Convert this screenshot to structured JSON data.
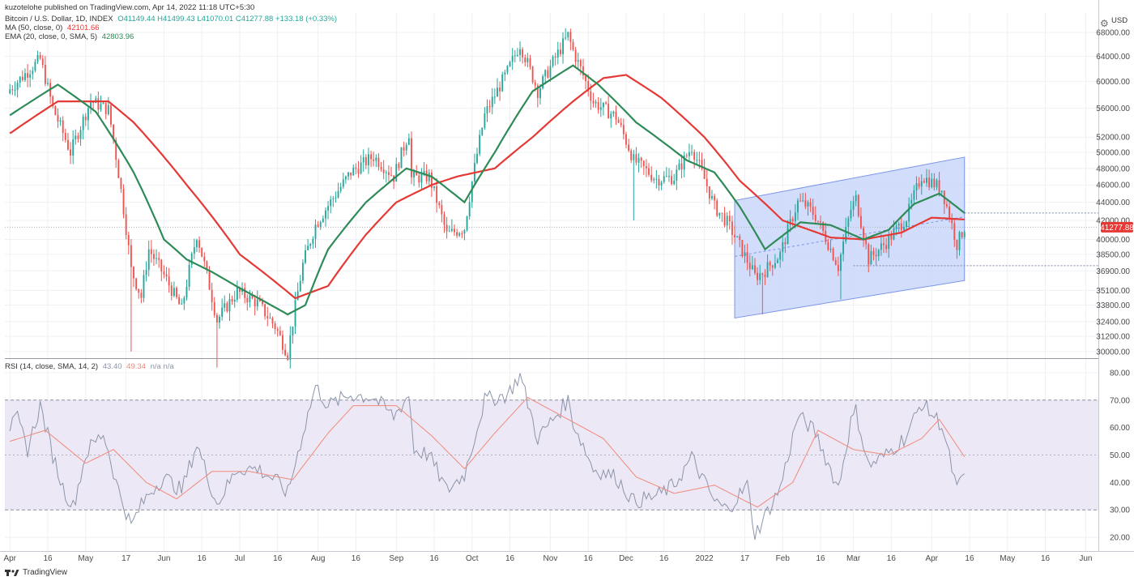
{
  "header": {
    "published": "kuzotelohe published on TradingView.com, Apr 14, 2022 11:18 UTC+5:30"
  },
  "legend": {
    "main": {
      "name": "Bitcoin / U.S. Dollar, 1D, INDEX",
      "ohlc": "O41149.44 H41499.43 L41070.01 C41277.88 +133.18 (+0.33%)"
    },
    "ma": {
      "name": "MA (50, close, 0)",
      "value": "42101.66"
    },
    "ema": {
      "name": "EMA (20, close, 0, SMA, 5)",
      "value": "42803.96"
    },
    "rsi": {
      "name": "RSI (14, close, SMA, 14, 2)",
      "value1": "43.40",
      "value2": "49.34",
      "extra": "n/a n/a"
    }
  },
  "unit": "USD",
  "last_price_label": "41277.88",
  "footer": {
    "brand": "TradingView"
  },
  "colors": {
    "up": "#26a69a",
    "down": "#ef5350",
    "ma": "#e53935",
    "ema": "#2e8b57",
    "channel_fill": "#c9d7fa",
    "channel_stroke": "#7a95e8",
    "rsi_line": "#8c95aa",
    "rsi_ma": "#f08a7a",
    "rsi_band": "#ede8f6",
    "price_tag": "#e53935"
  },
  "chart_data": {
    "type": "candlestick",
    "title": "Bitcoin / U.S. Dollar, 1D, INDEX",
    "price_axis": {
      "scale": "log",
      "ticks": [
        "68000.00",
        "64000.00",
        "60000.00",
        "56000.00",
        "52000.00",
        "50000.00",
        "48000.00",
        "46000.00",
        "44000.00",
        "42000.00",
        "40000.00",
        "38500.00",
        "36900.00",
        "35100.00",
        "33800.00",
        "32400.00",
        "31200.00",
        "30000.00"
      ],
      "range": [
        29500,
        71500
      ]
    },
    "rsi_axis": {
      "ticks": [
        "80.00",
        "70.00",
        "60.00",
        "50.00",
        "40.00",
        "30.00",
        "20.00"
      ],
      "range": [
        15,
        85
      ],
      "band": [
        30,
        70
      ]
    },
    "x_ticks": [
      "Apr",
      "16",
      "May",
      "17",
      "Jun",
      "16",
      "Jul",
      "16",
      "Aug",
      "16",
      "Sep",
      "16",
      "Oct",
      "16",
      "Nov",
      "16",
      "Dec",
      "16",
      "2022",
      "17",
      "Feb",
      "16",
      "Mar",
      "16",
      "Apr",
      "16",
      "May",
      "16",
      "Jun"
    ],
    "x_ticks_date": [
      "2021-04-01",
      "2021-04-16",
      "2021-05-01",
      "2021-05-17",
      "2021-06-01",
      "2021-06-16",
      "2021-07-01",
      "2021-07-16",
      "2021-08-01",
      "2021-08-16",
      "2021-09-01",
      "2021-09-16",
      "2021-10-01",
      "2021-10-16",
      "2021-11-01",
      "2021-11-16",
      "2021-12-01",
      "2021-12-16",
      "2022-01-01",
      "2022-01-17",
      "2022-02-01",
      "2022-02-16",
      "2022-03-01",
      "2022-03-16",
      "2022-04-01",
      "2022-04-16",
      "2022-05-01",
      "2022-05-16",
      "2022-06-01"
    ],
    "x_range": [
      "2021-03-30",
      "2022-06-06"
    ],
    "close_anchors": [
      [
        "2021-04-01",
        58800
      ],
      [
        "2021-04-13",
        63500
      ],
      [
        "2021-04-18",
        56000
      ],
      [
        "2021-04-25",
        50000
      ],
      [
        "2021-05-03",
        57000
      ],
      [
        "2021-05-10",
        55800
      ],
      [
        "2021-05-13",
        49500
      ],
      [
        "2021-05-19",
        37000
      ],
      [
        "2021-05-23",
        34500
      ],
      [
        "2021-05-26",
        39000
      ],
      [
        "2021-06-01",
        36500
      ],
      [
        "2021-06-08",
        33400
      ],
      [
        "2021-06-14",
        40500
      ],
      [
        "2021-06-22",
        32500
      ],
      [
        "2021-06-30",
        35000
      ],
      [
        "2021-07-08",
        34000
      ],
      [
        "2021-07-15",
        32000
      ],
      [
        "2021-07-20",
        29800
      ],
      [
        "2021-07-26",
        37500
      ],
      [
        "2021-07-31",
        41500
      ],
      [
        "2021-08-14",
        47500
      ],
      [
        "2021-08-23",
        49500
      ],
      [
        "2021-08-31",
        47000
      ],
      [
        "2021-09-06",
        52600
      ],
      [
        "2021-09-07",
        46800
      ],
      [
        "2021-09-14",
        47000
      ],
      [
        "2021-09-21",
        40500
      ],
      [
        "2021-09-28",
        41200
      ],
      [
        "2021-10-06",
        55000
      ],
      [
        "2021-10-15",
        61500
      ],
      [
        "2021-10-20",
        66000
      ],
      [
        "2021-10-27",
        58500
      ],
      [
        "2021-11-08",
        67500
      ],
      [
        "2021-11-10",
        64900
      ],
      [
        "2021-11-18",
        56900
      ],
      [
        "2021-11-27",
        54800
      ],
      [
        "2021-12-04",
        49000
      ],
      [
        "2021-12-13",
        46700
      ],
      [
        "2021-12-20",
        46900
      ],
      [
        "2021-12-27",
        50700
      ],
      [
        "2022-01-05",
        43500
      ],
      [
        "2022-01-10",
        41800
      ],
      [
        "2022-01-21",
        36400
      ],
      [
        "2022-01-24",
        36700
      ],
      [
        "2022-01-31",
        38500
      ],
      [
        "2022-02-07",
        44000
      ],
      [
        "2022-02-10",
        43700
      ],
      [
        "2022-02-14",
        42500
      ],
      [
        "2022-02-23",
        37300
      ],
      [
        "2022-02-28",
        43200
      ],
      [
        "2022-03-02",
        44400
      ],
      [
        "2022-03-07",
        38000
      ],
      [
        "2022-03-14",
        39700
      ],
      [
        "2022-03-22",
        42300
      ],
      [
        "2022-03-28",
        47100
      ],
      [
        "2022-04-05",
        45500
      ],
      [
        "2022-04-11",
        39500
      ],
      [
        "2022-04-14",
        41278
      ]
    ],
    "ma_anchors": [
      [
        "2021-04-01",
        52500
      ],
      [
        "2021-04-20",
        57000
      ],
      [
        "2021-05-10",
        57000
      ],
      [
        "2021-05-20",
        54000
      ],
      [
        "2021-06-10",
        46000
      ],
      [
        "2021-07-01",
        38500
      ],
      [
        "2021-07-23",
        34400
      ],
      [
        "2021-08-05",
        35500
      ],
      [
        "2021-08-20",
        40500
      ],
      [
        "2021-09-01",
        44000
      ],
      [
        "2021-09-15",
        46000
      ],
      [
        "2021-09-25",
        47000
      ],
      [
        "2021-10-10",
        48000
      ],
      [
        "2021-10-25",
        52000
      ],
      [
        "2021-11-10",
        57000
      ],
      [
        "2021-11-22",
        60500
      ],
      [
        "2021-12-01",
        61000
      ],
      [
        "2021-12-15",
        57500
      ],
      [
        "2022-01-01",
        52000
      ],
      [
        "2022-01-15",
        46500
      ],
      [
        "2022-02-01",
        42000
      ],
      [
        "2022-02-20",
        40200
      ],
      [
        "2022-03-05",
        40000
      ],
      [
        "2022-03-20",
        40700
      ],
      [
        "2022-04-01",
        42300
      ],
      [
        "2022-04-14",
        42102
      ]
    ],
    "ema_anchors": [
      [
        "2021-04-01",
        55000
      ],
      [
        "2021-04-20",
        59500
      ],
      [
        "2021-05-05",
        55500
      ],
      [
        "2021-05-20",
        47500
      ],
      [
        "2021-06-01",
        40000
      ],
      [
        "2021-06-10",
        38000
      ],
      [
        "2021-06-20",
        36800
      ],
      [
        "2021-07-01",
        35300
      ],
      [
        "2021-07-20",
        33000
      ],
      [
        "2021-07-27",
        33800
      ],
      [
        "2021-08-05",
        39000
      ],
      [
        "2021-08-20",
        44000
      ],
      [
        "2021-09-05",
        48000
      ],
      [
        "2021-09-15",
        47000
      ],
      [
        "2021-09-28",
        44000
      ],
      [
        "2021-10-10",
        50000
      ],
      [
        "2021-10-25",
        58500
      ],
      [
        "2021-11-10",
        62500
      ],
      [
        "2021-11-20",
        59500
      ],
      [
        "2021-12-05",
        54000
      ],
      [
        "2021-12-25",
        49000
      ],
      [
        "2022-01-05",
        47500
      ],
      [
        "2022-01-15",
        43500
      ],
      [
        "2022-01-25",
        39000
      ],
      [
        "2022-02-08",
        41800
      ],
      [
        "2022-02-20",
        41500
      ],
      [
        "2022-03-05",
        40000
      ],
      [
        "2022-03-15",
        41000
      ],
      [
        "2022-03-25",
        43800
      ],
      [
        "2022-04-04",
        45000
      ],
      [
        "2022-04-14",
        42804
      ]
    ],
    "wicks": [
      [
        "2021-05-19",
        30000
      ],
      [
        "2021-06-22",
        28800
      ],
      [
        "2021-07-20",
        29300
      ],
      [
        "2021-12-04",
        42000
      ],
      [
        "2022-01-24",
        33000
      ],
      [
        "2022-02-24",
        34300
      ]
    ],
    "channel": {
      "upper": [
        [
          "2022-01-13",
          44200
        ],
        [
          "2022-04-14",
          49400
        ]
      ],
      "lower": [
        [
          "2022-01-13",
          32700
        ],
        [
          "2022-04-14",
          36000
        ]
      ],
      "mid": [
        [
          "2022-01-13",
          38300
        ],
        [
          "2022-04-14",
          42400
        ]
      ]
    },
    "levels": [
      {
        "from": "2022-04-14",
        "to": "2022-06-06",
        "price": 42800
      },
      {
        "from": "2022-03-01",
        "to": "2022-06-06",
        "price": 37400
      },
      {
        "from": "2021-03-30",
        "to": "2022-06-06",
        "price": 41278
      }
    ],
    "rsi_anchors": [
      [
        "2021-04-01",
        60
      ],
      [
        "2021-04-04",
        63
      ],
      [
        "2021-04-08",
        52
      ],
      [
        "2021-04-13",
        68
      ],
      [
        "2021-04-18",
        50
      ],
      [
        "2021-04-22",
        38
      ],
      [
        "2021-04-26",
        31
      ],
      [
        "2021-05-01",
        50
      ],
      [
        "2021-05-03",
        53
      ],
      [
        "2021-05-08",
        58
      ],
      [
        "2021-05-11",
        48
      ],
      [
        "2021-05-13",
        40
      ],
      [
        "2021-05-19",
        24
      ],
      [
        "2021-05-22",
        30
      ],
      [
        "2021-05-26",
        36
      ],
      [
        "2021-06-01",
        42
      ],
      [
        "2021-06-08",
        37
      ],
      [
        "2021-06-14",
        54
      ],
      [
        "2021-06-22",
        32
      ],
      [
        "2021-06-30",
        45
      ],
      [
        "2021-07-08",
        45
      ],
      [
        "2021-07-15",
        41
      ],
      [
        "2021-07-20",
        36
      ],
      [
        "2021-07-26",
        58
      ],
      [
        "2021-07-31",
        75
      ],
      [
        "2021-08-05",
        68
      ],
      [
        "2021-08-14",
        72
      ],
      [
        "2021-08-23",
        71
      ],
      [
        "2021-08-31",
        64
      ],
      [
        "2021-09-06",
        72
      ],
      [
        "2021-09-08",
        52
      ],
      [
        "2021-09-14",
        50
      ],
      [
        "2021-09-21",
        37
      ],
      [
        "2021-09-28",
        43
      ],
      [
        "2021-10-06",
        70
      ],
      [
        "2021-10-15",
        72
      ],
      [
        "2021-10-20",
        79
      ],
      [
        "2021-10-27",
        56
      ],
      [
        "2021-11-08",
        70
      ],
      [
        "2021-11-10",
        62
      ],
      [
        "2021-11-18",
        45
      ],
      [
        "2021-11-27",
        42
      ],
      [
        "2021-12-04",
        33
      ],
      [
        "2021-12-13",
        35
      ],
      [
        "2021-12-20",
        39
      ],
      [
        "2021-12-27",
        49
      ],
      [
        "2022-01-05",
        33
      ],
      [
        "2022-01-10",
        30
      ],
      [
        "2022-01-18",
        39
      ],
      [
        "2022-01-21",
        21
      ],
      [
        "2022-01-24",
        26
      ],
      [
        "2022-01-31",
        38
      ],
      [
        "2022-02-07",
        64
      ],
      [
        "2022-02-10",
        62
      ],
      [
        "2022-02-14",
        58
      ],
      [
        "2022-02-23",
        38
      ],
      [
        "2022-02-28",
        62
      ],
      [
        "2022-03-02",
        66
      ],
      [
        "2022-03-07",
        46
      ],
      [
        "2022-03-14",
        50
      ],
      [
        "2022-03-22",
        57
      ],
      [
        "2022-03-28",
        69
      ],
      [
        "2022-04-05",
        61
      ],
      [
        "2022-04-11",
        37
      ],
      [
        "2022-04-14",
        43.4
      ]
    ],
    "rsi_ma_anchors": [
      [
        "2021-04-01",
        55
      ],
      [
        "2021-04-15",
        59
      ],
      [
        "2021-05-01",
        47
      ],
      [
        "2021-05-12",
        52
      ],
      [
        "2021-05-25",
        40
      ],
      [
        "2021-06-06",
        34
      ],
      [
        "2021-06-20",
        44
      ],
      [
        "2021-07-05",
        44
      ],
      [
        "2021-07-22",
        41
      ],
      [
        "2021-08-05",
        58
      ],
      [
        "2021-08-15",
        68
      ],
      [
        "2021-09-01",
        68
      ],
      [
        "2021-09-15",
        57
      ],
      [
        "2021-09-28",
        45
      ],
      [
        "2021-10-10",
        58
      ],
      [
        "2021-10-23",
        71
      ],
      [
        "2021-11-08",
        63
      ],
      [
        "2021-11-22",
        56
      ],
      [
        "2021-12-05",
        42
      ],
      [
        "2021-12-20",
        36
      ],
      [
        "2022-01-05",
        39
      ],
      [
        "2022-01-22",
        31
      ],
      [
        "2022-02-05",
        40
      ],
      [
        "2022-02-15",
        59
      ],
      [
        "2022-03-01",
        52
      ],
      [
        "2022-03-15",
        50
      ],
      [
        "2022-03-28",
        56
      ],
      [
        "2022-04-04",
        63
      ],
      [
        "2022-04-14",
        49.34
      ]
    ]
  }
}
